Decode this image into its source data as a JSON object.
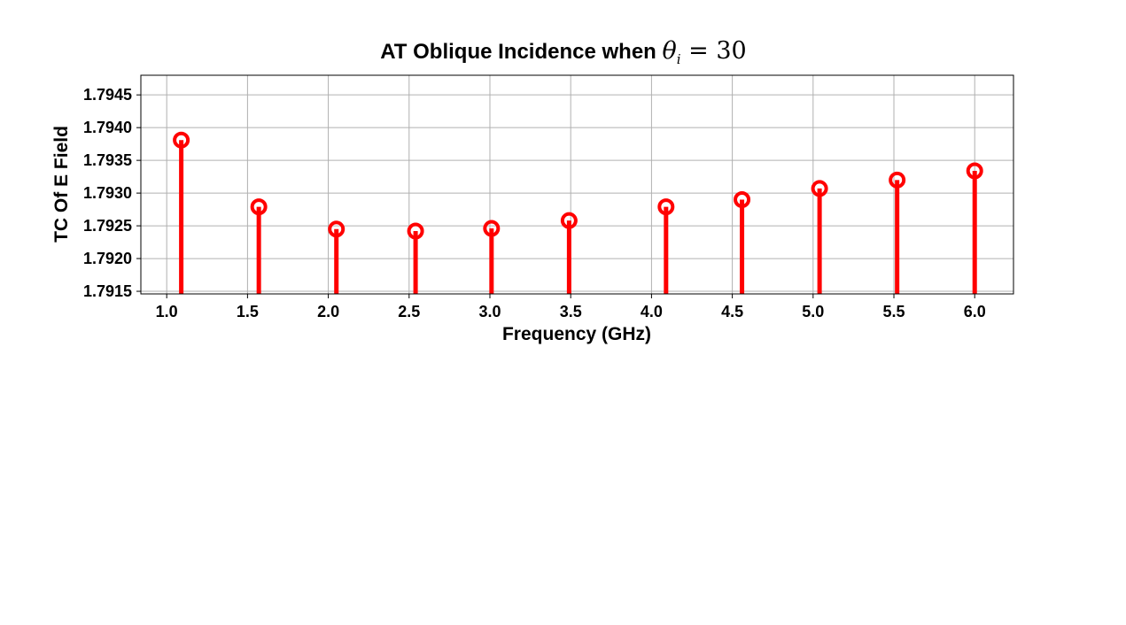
{
  "chart_data": {
    "type": "stem",
    "title": {
      "prefix": "AT Oblique Incidence when ",
      "symbol": "θ",
      "subscript": "i",
      "suffix": " = 30"
    },
    "xlabel": "Frequency (GHz)",
    "ylabel": "TC Of E Field",
    "xlim": [
      0.84,
      6.24
    ],
    "ylim": [
      1.79146,
      1.7948
    ],
    "x_ticks": [
      "1.0",
      "1.5",
      "2.0",
      "2.5",
      "3.0",
      "3.5",
      "4.0",
      "4.5",
      "5.0",
      "5.5",
      "6.0"
    ],
    "y_ticks": [
      "1.7915",
      "1.7920",
      "1.7925",
      "1.7930",
      "1.7935",
      "1.7940",
      "1.7945"
    ],
    "grid": true,
    "marker_color": "#ff0000",
    "series": [
      {
        "x": [
          1.09,
          1.57,
          2.05,
          2.54,
          3.01,
          3.49,
          4.09,
          4.56,
          5.04,
          5.52,
          6.0
        ],
        "y": [
          1.79381,
          1.79279,
          1.79245,
          1.79242,
          1.79246,
          1.79258,
          1.79279,
          1.7929,
          1.79307,
          1.7932,
          1.79334
        ]
      }
    ]
  }
}
